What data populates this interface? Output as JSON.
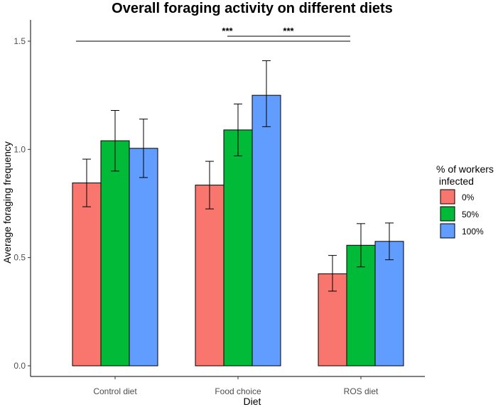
{
  "chart_data": {
    "type": "bar",
    "title": "Overall foraging activity on different diets",
    "xlabel": "Diet",
    "ylabel": "Average foraging frequency",
    "ylim": [
      0,
      1.6
    ],
    "yticks": [
      "0.0",
      "0.5",
      "1.0",
      "1.5"
    ],
    "ytick_values": [
      0,
      0.5,
      1.0,
      1.5
    ],
    "categories": [
      "Control diet",
      "Food choice",
      "ROS diet"
    ],
    "legend": {
      "title_line1": "% of workers",
      "title_line2": " infected",
      "position": "right"
    },
    "series": [
      {
        "name": "0%",
        "color": "#F8766D",
        "values": [
          0.845,
          0.835,
          0.425
        ],
        "err_low": [
          0.735,
          0.725,
          0.345
        ],
        "err_high": [
          0.955,
          0.945,
          0.51
        ]
      },
      {
        "name": "50%",
        "color": "#00BA38",
        "values": [
          1.04,
          1.09,
          0.557
        ],
        "err_low": [
          0.9,
          0.97,
          0.457
        ],
        "err_high": [
          1.18,
          1.21,
          0.657
        ]
      },
      {
        "name": "100%",
        "color": "#619CFF",
        "values": [
          1.005,
          1.25,
          0.575
        ],
        "err_low": [
          0.87,
          1.105,
          0.49
        ],
        "err_high": [
          1.14,
          1.41,
          0.66
        ]
      }
    ],
    "significance": [
      {
        "label": "***",
        "from": "Control diet",
        "to": "ROS diet",
        "level": 1.5
      },
      {
        "label": "***",
        "from": "Food choice",
        "to": "ROS diet",
        "level": 1.52
      }
    ]
  }
}
